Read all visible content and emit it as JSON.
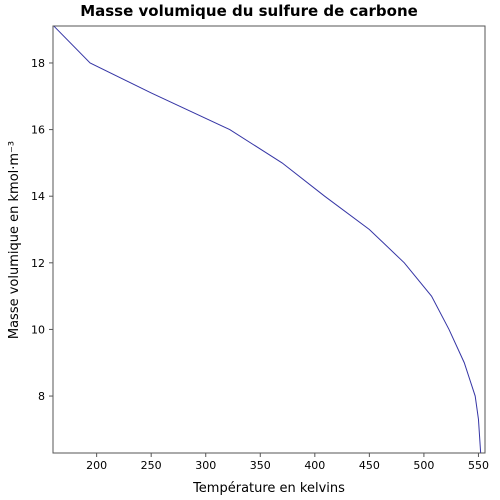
{
  "chart_data": {
    "type": "line",
    "title": "Masse volumique du sulfure de carbone",
    "x_label": "Température en kelvins",
    "y_label": "Masse volumique en kmol·m⁻³",
    "series": [
      {
        "color": "#3535a5",
        "x": [
          161,
          194,
          250,
          322,
          370,
          409,
          450,
          482,
          507,
          523,
          537,
          547,
          550,
          552
        ],
        "values": [
          19.1,
          18,
          17.1,
          16,
          15,
          14,
          13,
          12,
          11,
          10,
          9,
          8,
          7.3,
          6.3
        ]
      }
    ],
    "xlim": [
      160,
      556
    ],
    "ylim": [
      6.29,
      19.11
    ],
    "xticks": [
      200,
      250,
      300,
      350,
      400,
      450,
      500,
      550
    ],
    "yticks": [
      8,
      10,
      12,
      14,
      16,
      18
    ],
    "grid": false
  }
}
